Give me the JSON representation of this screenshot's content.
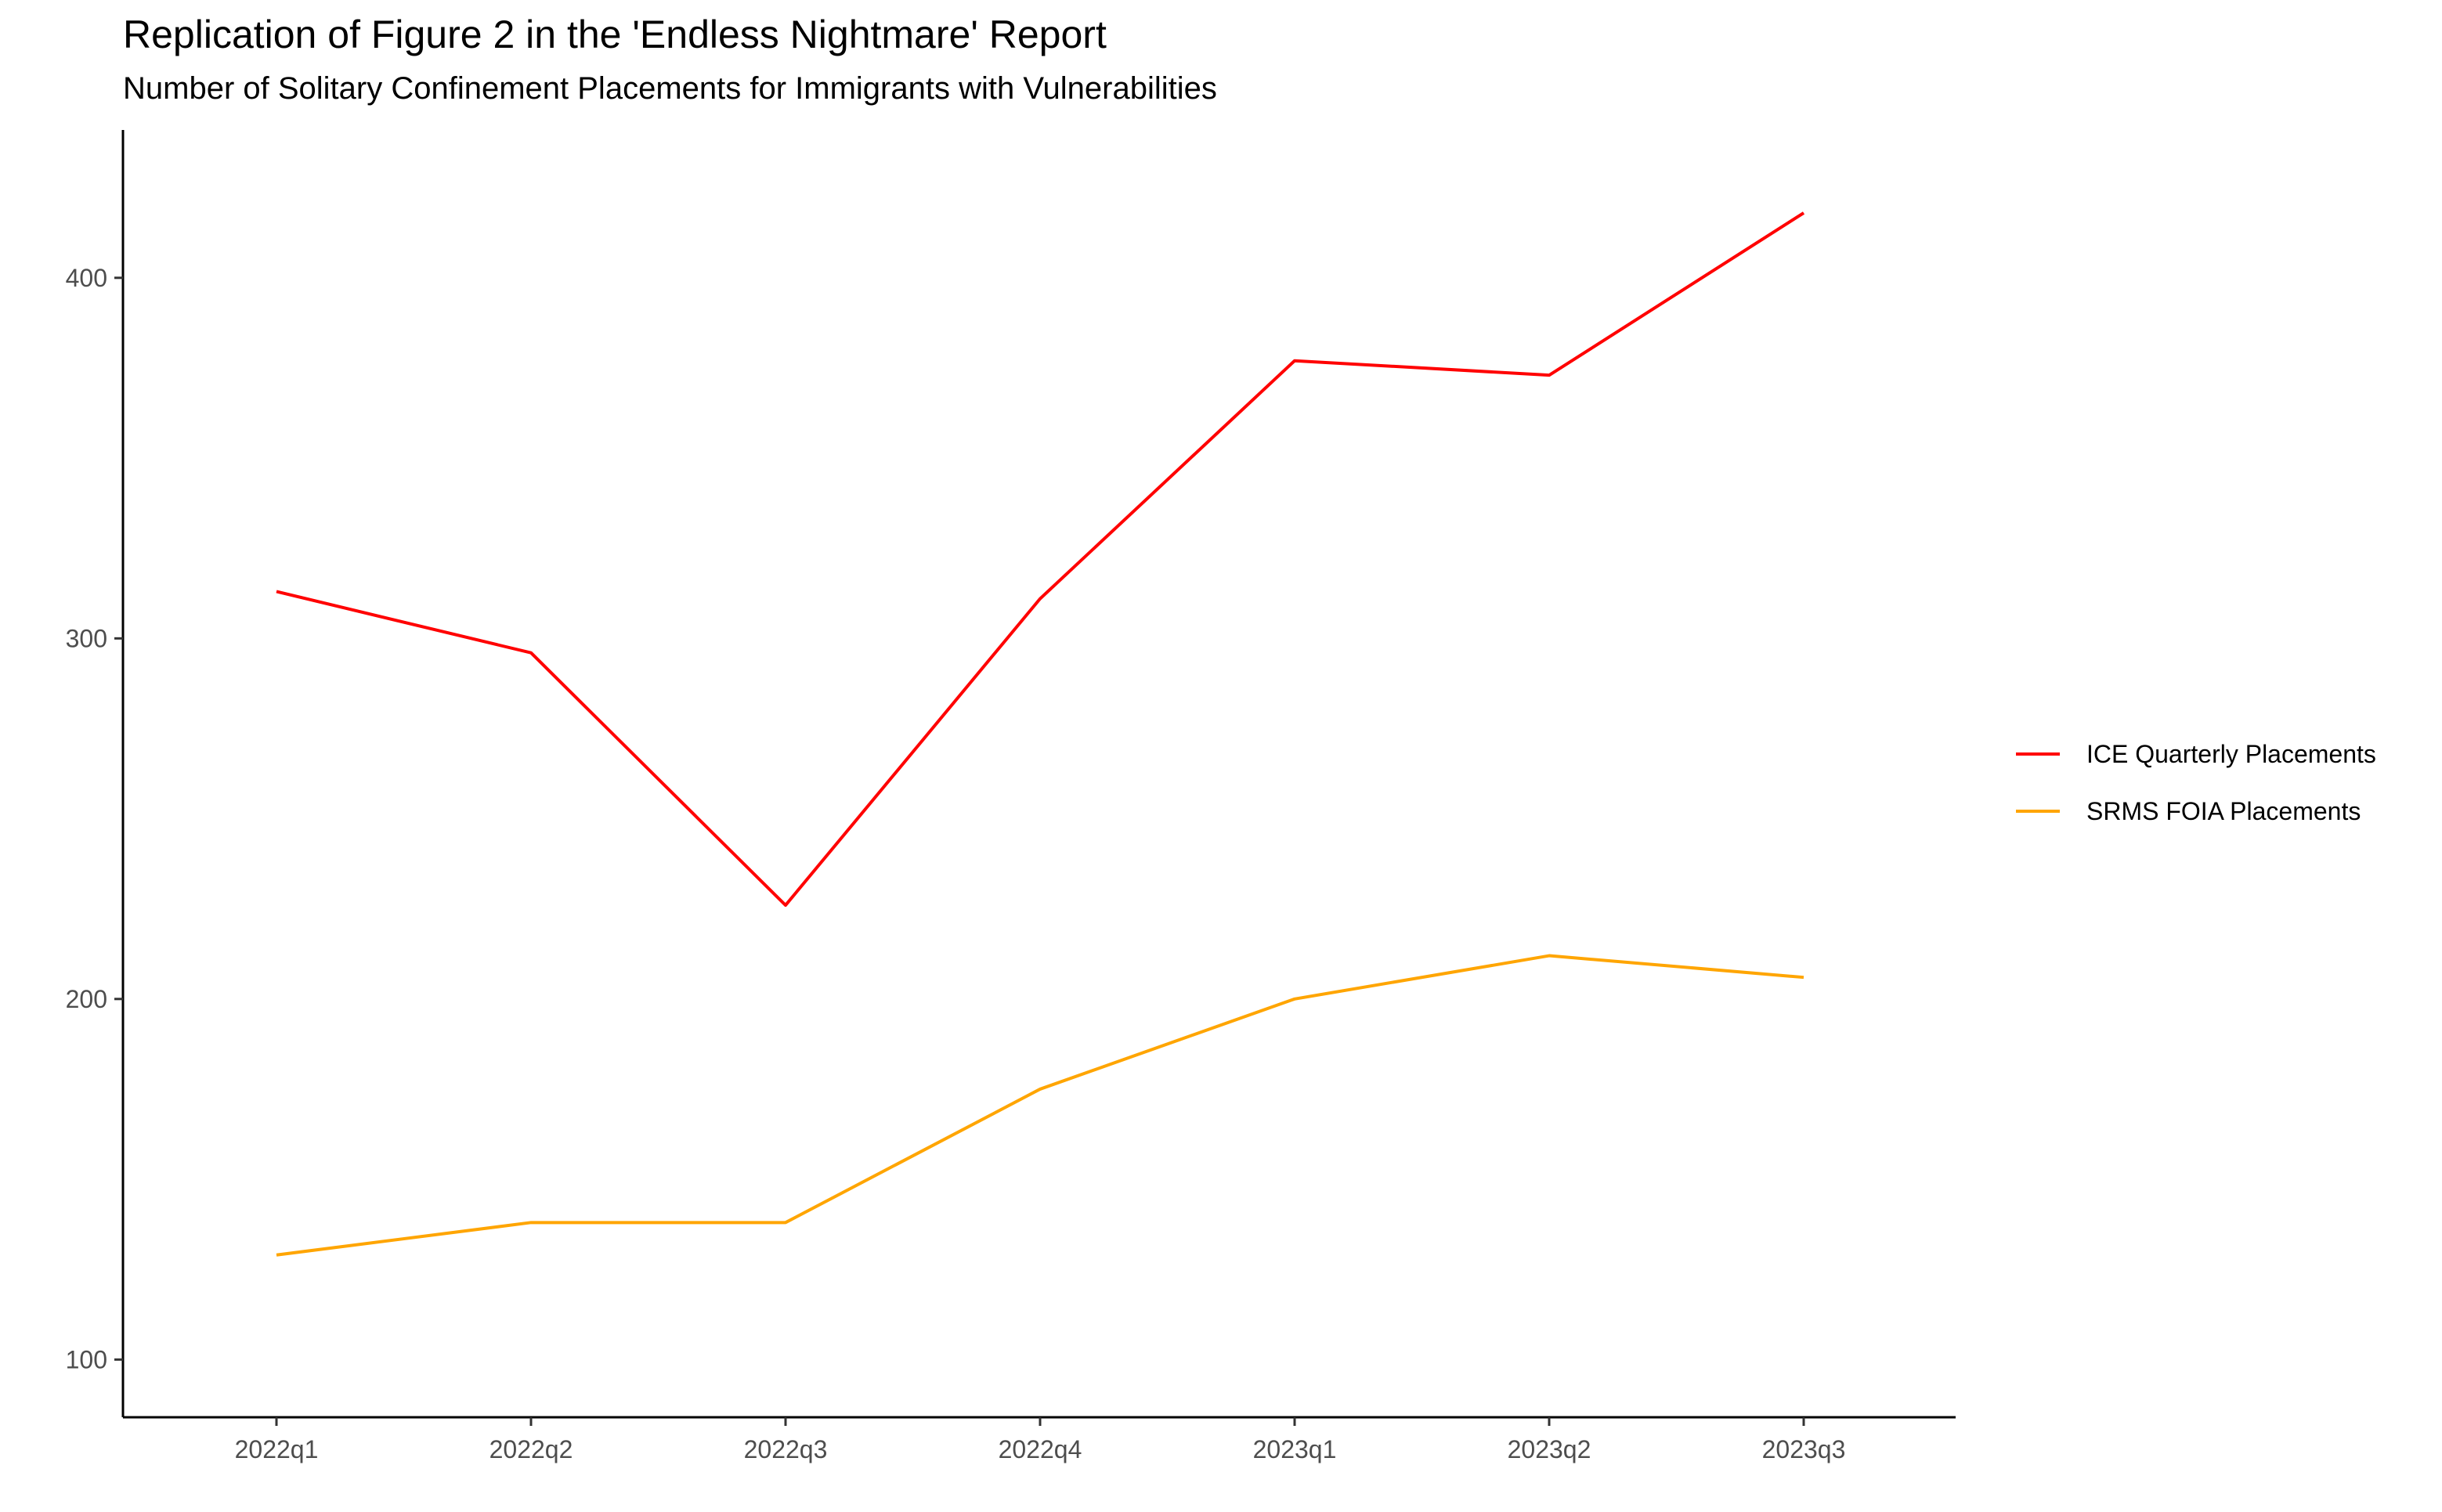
{
  "chart_data": {
    "type": "line",
    "title": "Replication of Figure 2 in the 'Endless Nightmare' Report",
    "subtitle": "Number of Solitary Confinement Placements for Immigrants with Vulnerabilities",
    "xlabel": "",
    "ylabel": "",
    "categories": [
      "2022q1",
      "2022q2",
      "2022q3",
      "2022q4",
      "2023q1",
      "2023q2",
      "2023q3"
    ],
    "ylim": [
      84,
      441
    ],
    "yticks": [
      100,
      200,
      300,
      400
    ],
    "grid": false,
    "legend_position": "right",
    "series": [
      {
        "name": "ICE Quarterly Placements",
        "color": "#ff0000",
        "values": [
          313,
          296,
          226,
          311,
          377,
          373,
          418
        ]
      },
      {
        "name": "SRMS FOIA Placements",
        "color": "#ffa500",
        "values": [
          129,
          138,
          138,
          175,
          200,
          212,
          206
        ]
      }
    ]
  }
}
